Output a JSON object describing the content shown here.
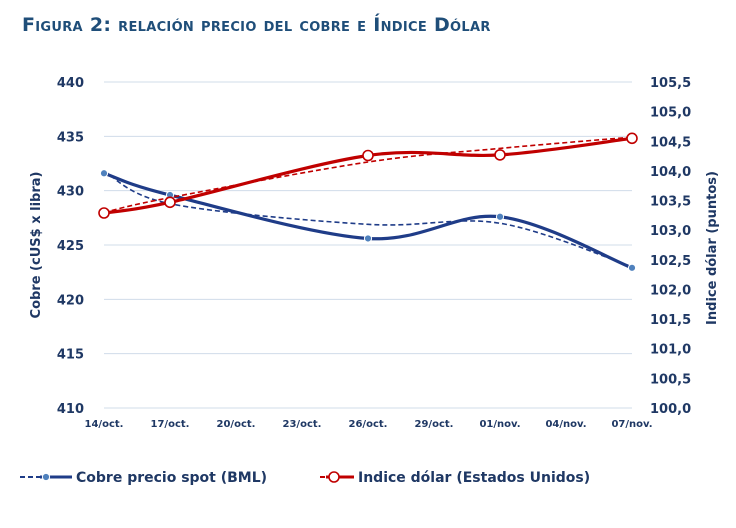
{
  "chart_data": {
    "type": "line",
    "title": "Figura 2: relación precio del cobre e Índice Dólar",
    "categories": [
      "14/oct.",
      "17/oct.",
      "20/oct.",
      "23/oct.",
      "26/oct.",
      "29/oct.",
      "01/nov.",
      "04/nov.",
      "07/nov."
    ],
    "x": [
      "14/oct.",
      "17/oct.",
      "26/oct.",
      "01/nov.",
      "07/nov."
    ],
    "ylabel": "Cobre (cUS$ x libra)",
    "y2label": "Indice dólar (puntos)",
    "ylim": [
      410,
      440
    ],
    "y2lim": [
      100.0,
      105.5
    ],
    "yticks": [
      "410",
      "415",
      "420",
      "425",
      "430",
      "435",
      "440"
    ],
    "y2ticks": [
      "100,0",
      "100,5",
      "101,0",
      "101,5",
      "102,0",
      "102,5",
      "103,0",
      "103,5",
      "104,0",
      "104,5",
      "105,0",
      "105,5"
    ],
    "grid": true,
    "legend_position": "bottom",
    "series": [
      {
        "name": "Cobre precio spot (BML)",
        "axis": "left",
        "color": "#1f3c88",
        "marker": "dot",
        "values": [
          431.6,
          429.6,
          425.6,
          427.6,
          422.9
        ],
        "trend_values": [
          431.8,
          428.8,
          426.9,
          427.0,
          423.0
        ]
      },
      {
        "name": "Indice dólar (Estados Unidos)",
        "axis": "right",
        "color": "#c00000",
        "marker": "circle",
        "values": [
          103.29,
          103.47,
          104.26,
          104.27,
          104.55
        ],
        "trend_values": [
          103.3,
          103.55,
          104.15,
          104.38,
          104.57
        ]
      }
    ]
  }
}
